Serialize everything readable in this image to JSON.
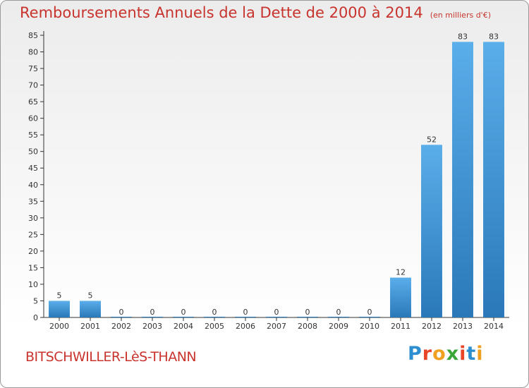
{
  "title": "Remboursements Annuels de la Dette de 2000 à 2014",
  "unit": "(en milliers d'€)",
  "commune": "BITSCHWILLER-LèS-THANN",
  "logo": {
    "text": "Proxiti",
    "letter_colors": [
      "#2e8fd0",
      "#e8462a",
      "#f0a020",
      "#3aa63a",
      "#e8462a",
      "#2e8fd0",
      "#f0a020"
    ]
  },
  "colors": {
    "title": "#c8342d",
    "bar_light": "#5aaeea",
    "bar_dark": "#2a78b8",
    "axis": "#333333"
  },
  "chart_data": {
    "type": "bar",
    "categories": [
      "2000",
      "2001",
      "2002",
      "2003",
      "2004",
      "2005",
      "2006",
      "2007",
      "2008",
      "2009",
      "2010",
      "2011",
      "2012",
      "2013",
      "2014"
    ],
    "values": [
      5,
      5,
      0,
      0,
      0,
      0,
      0,
      0,
      0,
      0,
      0,
      12,
      52,
      83,
      83
    ],
    "ylim": [
      0,
      85
    ],
    "yticks": [
      0,
      5,
      10,
      15,
      20,
      25,
      30,
      35,
      40,
      45,
      50,
      55,
      60,
      65,
      70,
      75,
      80,
      85
    ],
    "grid": false,
    "xlabel": "",
    "ylabel": ""
  }
}
